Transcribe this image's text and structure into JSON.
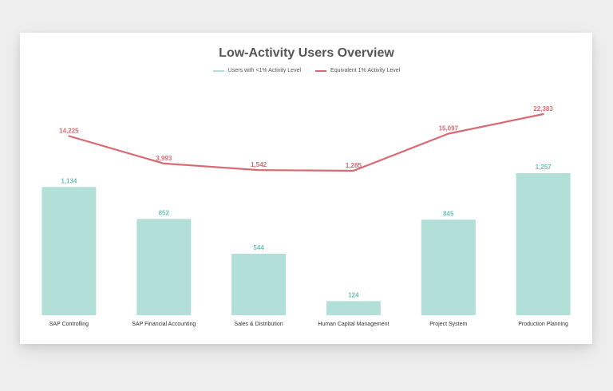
{
  "chart_data": {
    "type": "bar",
    "title": "Low-Activity Users Overview",
    "categories": [
      "SAP Controlling",
      "SAP Financial Accounting",
      "Sales & Distribution",
      "Human Capital Management",
      "Project System",
      "Production Planning"
    ],
    "series": [
      {
        "name": "Users with <1% Activity Level",
        "type": "bar",
        "values": [
          1134,
          852,
          544,
          124,
          845,
          1257
        ],
        "labels": [
          "1,134",
          "852",
          "544",
          "124",
          "845",
          "1,257"
        ],
        "color": "#b2e0d8",
        "label_color": "#6cc3b8"
      },
      {
        "name": "Equivalent 1% Activity Level",
        "type": "line",
        "values": [
          14225,
          3993,
          1542,
          1285,
          15097,
          22383
        ],
        "labels": [
          "14,225",
          "3,993",
          "1,542",
          "1,285",
          "15,097",
          "22,383"
        ],
        "color": "#d96a72"
      }
    ],
    "legend_position": "top-center",
    "grid": false
  }
}
